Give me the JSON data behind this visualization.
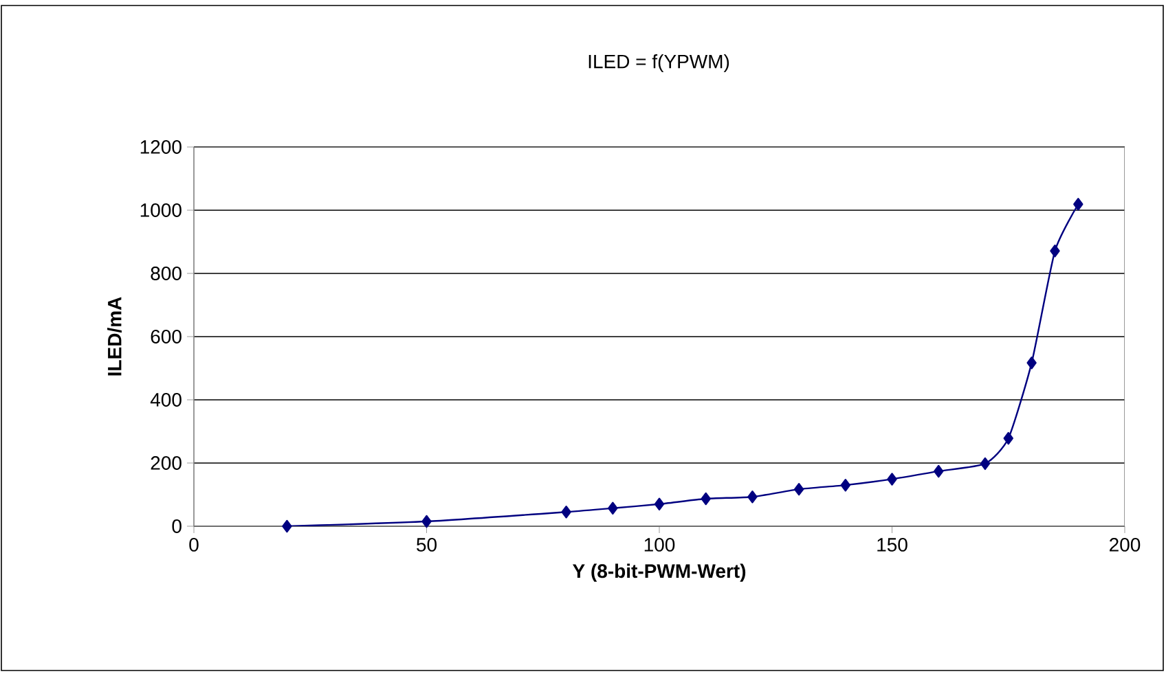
{
  "chart_data": {
    "type": "line",
    "title": "ILED = f(YPWM)",
    "xlabel": "Y (8-bit-PWM-Wert)",
    "ylabel": "ILED/mA",
    "x": [
      20,
      50,
      80,
      90,
      100,
      110,
      120,
      130,
      140,
      150,
      160,
      170,
      175,
      180,
      185,
      190
    ],
    "series": [
      {
        "color": "#000080",
        "values": [
          0,
          15,
          45,
          57,
          70,
          87,
          93,
          117,
          130,
          149,
          174,
          198,
          278,
          517,
          871,
          1019
        ]
      }
    ],
    "xlim": [
      0,
      200
    ],
    "ylim": [
      0,
      1200
    ],
    "xticks": [
      0,
      50,
      100,
      150,
      200
    ],
    "yticks": [
      0,
      200,
      400,
      600,
      800,
      1000,
      1200
    ],
    "grid": "y",
    "marker": "diamond",
    "line_style": "solid"
  }
}
